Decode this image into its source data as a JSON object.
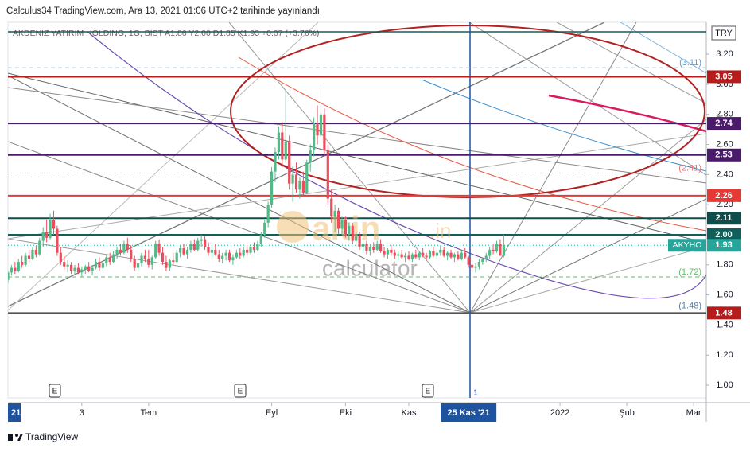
{
  "header": "Calculus34 TradingView.com, Ara 13, 2021 01:06 UTC+2 tarihinde yayınlandı",
  "footer": "TradingView",
  "chart_data": {
    "type": "candlestick",
    "legend": "AKDENIZ YATIRIM HOLDING, 1G, BIST  A1.86  Y2.00  D1.85  K1.93  +0.07 (+3.76%)",
    "currency": "TRY",
    "up_color": "#53b987",
    "down_color": "#eb4d5c",
    "xlim": [
      0,
      198.6
    ],
    "xticks": [
      {
        "value": 1,
        "label": "21"
      },
      {
        "value": 21,
        "label": "3"
      },
      {
        "value": 40,
        "label": "Tem"
      },
      {
        "value": 75,
        "label": "Eyl"
      },
      {
        "value": 96,
        "label": "Eki"
      },
      {
        "value": 114,
        "label": "Kas"
      },
      {
        "value": 131,
        "label": "25 Kas '21"
      },
      {
        "value": 157,
        "label": "2022"
      },
      {
        "value": 176,
        "label": "Şub"
      },
      {
        "value": 195,
        "label": "Mar"
      }
    ],
    "ylim": [
      0.916,
      3.412
    ],
    "yticks": [
      {
        "value": 1,
        "label": "1.00"
      },
      {
        "value": 1.2,
        "label": "1.20"
      },
      {
        "value": 1.4,
        "label": "1.40"
      },
      {
        "value": 1.6,
        "label": "1.60"
      },
      {
        "value": 1.8,
        "label": "1.80"
      },
      {
        "value": 2,
        "label": "2.00"
      },
      {
        "value": 2.2,
        "label": "2.20"
      },
      {
        "value": 2.4,
        "label": "2.40"
      },
      {
        "value": 2.6,
        "label": "2.60"
      },
      {
        "value": 2.8,
        "label": "2.80"
      },
      {
        "value": 3,
        "label": "3.00"
      },
      {
        "value": 3.2,
        "label": "3.20"
      }
    ],
    "levels": [
      {
        "value": 3.11,
        "label": "(3.11)",
        "color": "#9ec8e8",
        "text_color": "#5b9bd5",
        "style": "dashed",
        "box": false
      },
      {
        "value": 3.05,
        "label": "3.05",
        "color": "#b71c1c",
        "style": "solid",
        "box": true
      },
      {
        "value": 2.74,
        "label": "2.74",
        "color": "#4a1a6b",
        "style": "solid",
        "box": true
      },
      {
        "value": 2.53,
        "label": "2.53",
        "color": "#4a1a6b",
        "style": "solid",
        "box": true
      },
      {
        "value": 2.41,
        "label": "(2.41)",
        "color": "#e57373",
        "text_color": "#e57373",
        "style": "dashed",
        "box": false
      },
      {
        "value": 2.26,
        "label": "2.26",
        "color": "#e53935",
        "style": "solid",
        "box": true
      },
      {
        "value": 2.11,
        "label": "2.11",
        "color": "#0f4d4d",
        "style": "solid",
        "box": true
      },
      {
        "value": 2.0,
        "label": "2.00",
        "color": "#0f5f5a",
        "style": "solid",
        "box": true
      },
      {
        "value": 1.93,
        "label": "1.93",
        "color": "#26a69a",
        "style": "dotted",
        "box": true,
        "tag": "AKYHO"
      },
      {
        "value": 1.72,
        "label": "(1.72)",
        "color": "#66bb6a",
        "text_color": "#66bb6a",
        "style": "dashed",
        "box": false
      },
      {
        "value": 1.48,
        "label": "1.48",
        "color": "#555555",
        "box_color": "#b71c1c",
        "style": "solid",
        "box": true,
        "extra_label": "(1.48)"
      }
    ],
    "events": [
      "E",
      "E",
      "E"
    ],
    "marker": "1",
    "watermark": {
      "brand": "altin",
      "suffix": ".in",
      "sub": "calculator"
    },
    "candles": [
      [
        1.7,
        1.76,
        1.68,
        1.75
      ],
      [
        1.75,
        1.8,
        1.73,
        1.78
      ],
      [
        1.78,
        1.82,
        1.74,
        1.76
      ],
      [
        1.76,
        1.84,
        1.75,
        1.82
      ],
      [
        1.82,
        1.86,
        1.78,
        1.8
      ],
      [
        1.8,
        1.88,
        1.79,
        1.86
      ],
      [
        1.86,
        1.9,
        1.82,
        1.84
      ],
      [
        1.84,
        1.92,
        1.83,
        1.9
      ],
      [
        1.9,
        1.93,
        1.85,
        1.87
      ],
      [
        1.87,
        1.98,
        1.86,
        1.96
      ],
      [
        1.96,
        2.05,
        1.92,
        2.02
      ],
      [
        2.02,
        2.1,
        1.95,
        1.98
      ],
      [
        1.98,
        2.14,
        1.97,
        2.1
      ],
      [
        2.1,
        2.16,
        2.0,
        2.04
      ],
      [
        2.04,
        2.06,
        1.86,
        1.88
      ],
      [
        1.88,
        1.92,
        1.8,
        1.82
      ],
      [
        1.82,
        1.86,
        1.77,
        1.79
      ],
      [
        1.79,
        1.83,
        1.75,
        1.8
      ],
      [
        1.8,
        1.82,
        1.74,
        1.76
      ],
      [
        1.76,
        1.8,
        1.73,
        1.78
      ],
      [
        1.78,
        1.81,
        1.74,
        1.75
      ],
      [
        1.75,
        1.79,
        1.72,
        1.77
      ],
      [
        1.77,
        1.8,
        1.74,
        1.79
      ],
      [
        1.79,
        1.82,
        1.75,
        1.76
      ],
      [
        1.76,
        1.8,
        1.73,
        1.78
      ],
      [
        1.78,
        1.84,
        1.77,
        1.82
      ],
      [
        1.82,
        1.85,
        1.76,
        1.78
      ],
      [
        1.78,
        1.83,
        1.76,
        1.81
      ],
      [
        1.81,
        1.87,
        1.79,
        1.85
      ],
      [
        1.85,
        1.88,
        1.8,
        1.82
      ],
      [
        1.82,
        1.89,
        1.81,
        1.87
      ],
      [
        1.87,
        1.92,
        1.84,
        1.9
      ],
      [
        1.9,
        1.94,
        1.86,
        1.88
      ],
      [
        1.88,
        1.96,
        1.87,
        1.94
      ],
      [
        1.94,
        1.98,
        1.88,
        1.9
      ],
      [
        1.9,
        1.93,
        1.82,
        1.84
      ],
      [
        1.84,
        1.86,
        1.76,
        1.78
      ],
      [
        1.78,
        1.83,
        1.75,
        1.81
      ],
      [
        1.81,
        1.88,
        1.79,
        1.86
      ],
      [
        1.86,
        1.9,
        1.82,
        1.84
      ],
      [
        1.84,
        1.9,
        1.78,
        1.8
      ],
      [
        1.8,
        1.86,
        1.77,
        1.85
      ],
      [
        1.85,
        1.96,
        1.84,
        1.94
      ],
      [
        1.94,
        1.97,
        1.86,
        1.88
      ],
      [
        1.88,
        1.92,
        1.8,
        1.82
      ],
      [
        1.82,
        1.86,
        1.76,
        1.78
      ],
      [
        1.78,
        1.84,
        1.76,
        1.83
      ],
      [
        1.83,
        1.88,
        1.8,
        1.82
      ],
      [
        1.82,
        1.9,
        1.81,
        1.88
      ],
      [
        1.88,
        1.93,
        1.85,
        1.91
      ],
      [
        1.91,
        1.94,
        1.86,
        1.87
      ],
      [
        1.87,
        1.92,
        1.84,
        1.9
      ],
      [
        1.9,
        1.96,
        1.88,
        1.94
      ],
      [
        1.94,
        1.97,
        1.89,
        1.9
      ],
      [
        1.9,
        1.98,
        1.89,
        1.96
      ],
      [
        1.96,
        2.0,
        1.92,
        1.97
      ],
      [
        1.97,
        1.99,
        1.9,
        1.92
      ],
      [
        1.92,
        1.95,
        1.86,
        1.88
      ],
      [
        1.88,
        1.92,
        1.85,
        1.9
      ],
      [
        1.9,
        1.94,
        1.86,
        1.87
      ],
      [
        1.87,
        1.9,
        1.82,
        1.84
      ],
      [
        1.84,
        1.88,
        1.81,
        1.86
      ],
      [
        1.86,
        1.9,
        1.83,
        1.88
      ],
      [
        1.88,
        1.9,
        1.82,
        1.83
      ],
      [
        1.83,
        1.87,
        1.8,
        1.85
      ],
      [
        1.85,
        1.9,
        1.84,
        1.88
      ],
      [
        1.88,
        1.91,
        1.84,
        1.86
      ],
      [
        1.86,
        1.92,
        1.85,
        1.9
      ],
      [
        1.9,
        1.93,
        1.86,
        1.88
      ],
      [
        1.88,
        1.94,
        1.87,
        1.92
      ],
      [
        1.92,
        1.95,
        1.88,
        1.9
      ],
      [
        1.9,
        1.96,
        1.89,
        1.94
      ],
      [
        1.94,
        2.02,
        1.92,
        2.0
      ],
      [
        2.0,
        2.1,
        1.98,
        2.08
      ],
      [
        2.08,
        2.22,
        2.05,
        2.2
      ],
      [
        2.2,
        2.45,
        2.18,
        2.42
      ],
      [
        2.42,
        2.58,
        2.35,
        2.55
      ],
      [
        2.55,
        2.72,
        2.5,
        2.68
      ],
      [
        2.68,
        2.75,
        2.45,
        2.5
      ],
      [
        2.5,
        2.96,
        2.48,
        2.62
      ],
      [
        2.62,
        2.66,
        2.3,
        2.34
      ],
      [
        2.34,
        2.46,
        2.22,
        2.4
      ],
      [
        2.4,
        2.48,
        2.28,
        2.3
      ],
      [
        2.3,
        2.38,
        2.24,
        2.36
      ],
      [
        2.36,
        2.42,
        2.26,
        2.28
      ],
      [
        2.28,
        2.5,
        2.27,
        2.48
      ],
      [
        2.48,
        2.6,
        2.42,
        2.56
      ],
      [
        2.56,
        2.78,
        2.52,
        2.74
      ],
      [
        2.74,
        2.86,
        2.6,
        2.66
      ],
      [
        2.66,
        3.0,
        2.62,
        2.8
      ],
      [
        2.8,
        2.84,
        2.52,
        2.56
      ],
      [
        2.56,
        2.6,
        2.2,
        2.24
      ],
      [
        2.24,
        2.3,
        2.08,
        2.12
      ],
      [
        2.12,
        2.2,
        2.02,
        2.16
      ],
      [
        2.16,
        2.18,
        2.0,
        2.04
      ],
      [
        2.04,
        2.12,
        2.0,
        2.1
      ],
      [
        2.1,
        2.12,
        1.98,
        2.0
      ],
      [
        2.0,
        2.08,
        1.96,
        2.06
      ],
      [
        2.06,
        2.08,
        1.94,
        1.96
      ],
      [
        1.96,
        2.02,
        1.92,
        1.99
      ],
      [
        1.99,
        2.02,
        1.9,
        1.92
      ],
      [
        1.92,
        1.96,
        1.88,
        1.94
      ],
      [
        1.94,
        1.96,
        1.87,
        1.89
      ],
      [
        1.89,
        1.94,
        1.86,
        1.92
      ],
      [
        1.92,
        1.95,
        1.88,
        1.9
      ],
      [
        1.9,
        1.96,
        1.89,
        1.94
      ],
      [
        1.94,
        1.97,
        1.88,
        1.89
      ],
      [
        1.89,
        1.92,
        1.85,
        1.87
      ],
      [
        1.87,
        1.91,
        1.84,
        1.9
      ],
      [
        1.9,
        1.93,
        1.86,
        1.88
      ],
      [
        1.88,
        1.9,
        1.84,
        1.86
      ],
      [
        1.86,
        1.89,
        1.83,
        1.87
      ],
      [
        1.87,
        1.9,
        1.84,
        1.85
      ],
      [
        1.85,
        1.88,
        1.82,
        1.86
      ],
      [
        1.86,
        1.89,
        1.83,
        1.84
      ],
      [
        1.84,
        1.88,
        1.82,
        1.87
      ],
      [
        1.87,
        1.9,
        1.84,
        1.85
      ],
      [
        1.85,
        1.89,
        1.83,
        1.88
      ],
      [
        1.88,
        1.91,
        1.85,
        1.86
      ],
      [
        1.86,
        1.88,
        1.83,
        1.85
      ],
      [
        1.85,
        1.9,
        1.84,
        1.89
      ],
      [
        1.89,
        1.92,
        1.85,
        1.86
      ],
      [
        1.86,
        1.9,
        1.84,
        1.88
      ],
      [
        1.88,
        1.93,
        1.86,
        1.9
      ],
      [
        1.9,
        1.92,
        1.85,
        1.86
      ],
      [
        1.86,
        1.89,
        1.83,
        1.88
      ],
      [
        1.88,
        1.9,
        1.84,
        1.85
      ],
      [
        1.85,
        1.88,
        1.82,
        1.87
      ],
      [
        1.87,
        1.89,
        1.83,
        1.84
      ],
      [
        1.84,
        1.9,
        1.83,
        1.88
      ],
      [
        1.88,
        1.91,
        1.84,
        1.85
      ],
      [
        1.85,
        1.86,
        1.78,
        1.8
      ],
      [
        1.8,
        1.83,
        1.76,
        1.78
      ],
      [
        1.78,
        1.81,
        1.75,
        1.79
      ],
      [
        1.79,
        1.84,
        1.77,
        1.82
      ],
      [
        1.82,
        1.85,
        1.8,
        1.84
      ],
      [
        1.84,
        1.88,
        1.82,
        1.86
      ],
      [
        1.86,
        1.92,
        1.84,
        1.9
      ],
      [
        1.9,
        1.94,
        1.87,
        1.89
      ],
      [
        1.89,
        1.96,
        1.88,
        1.94
      ],
      [
        1.94,
        1.97,
        1.88,
        1.86
      ],
      [
        1.86,
        2.0,
        1.85,
        1.93
      ]
    ]
  }
}
